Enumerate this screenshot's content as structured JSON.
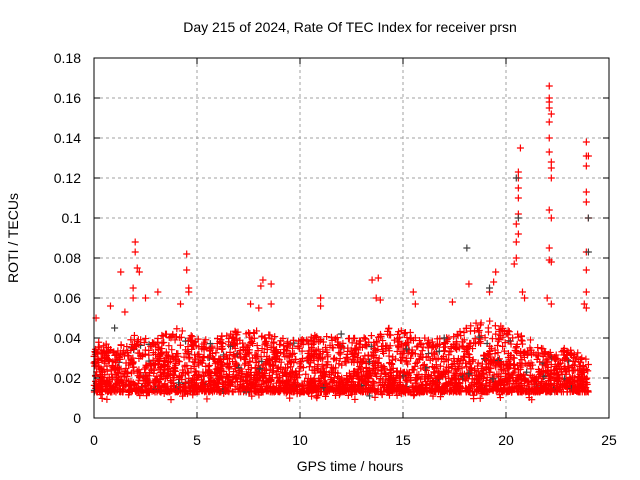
{
  "chart_data": {
    "type": "scatter",
    "title": "Day 215 of 2024, Rate Of TEC Index for receiver prsn",
    "xlabel": "GPS time / hours",
    "ylabel": "ROTI / TECUs",
    "xlim": [
      0,
      25
    ],
    "ylim": [
      0,
      0.18
    ],
    "xticks": [
      "0",
      "5",
      "10",
      "15",
      "20",
      "25"
    ],
    "xtick_values": [
      0,
      5,
      10,
      15,
      20,
      25
    ],
    "yticks": [
      "0",
      "0.02",
      "0.04",
      "0.06",
      "0.08",
      "0.1",
      "0.12",
      "0.14",
      "0.16",
      "0.18"
    ],
    "ytick_values": [
      0,
      0.02,
      0.04,
      0.06,
      0.08,
      0.1,
      0.12,
      0.14,
      0.16,
      0.18
    ],
    "grid": true,
    "marker": "plus",
    "colors": {
      "primary": "#ff0000",
      "secondary": "#404040",
      "grid": "#a0a0a0"
    },
    "dense_cloud": {
      "x_range": [
        0,
        24
      ],
      "y_floor": 0.007,
      "hourly_upper_envelope": [
        0.04,
        0.035,
        0.042,
        0.04,
        0.045,
        0.04,
        0.04,
        0.045,
        0.045,
        0.04,
        0.04,
        0.042,
        0.04,
        0.04,
        0.045,
        0.045,
        0.04,
        0.04,
        0.045,
        0.05,
        0.045,
        0.04,
        0.035,
        0.035,
        0.03
      ]
    },
    "series": [
      {
        "name": "red",
        "color": "#ff0000",
        "outliers": [
          [
            0.1,
            0.05
          ],
          [
            0.8,
            0.056
          ],
          [
            1.3,
            0.073
          ],
          [
            1.5,
            0.053
          ],
          [
            2.0,
            0.088
          ],
          [
            2.0,
            0.083
          ],
          [
            2.1,
            0.075
          ],
          [
            2.2,
            0.073
          ],
          [
            1.9,
            0.065
          ],
          [
            1.9,
            0.06
          ],
          [
            2.5,
            0.06
          ],
          [
            3.1,
            0.063
          ],
          [
            4.5,
            0.082
          ],
          [
            4.5,
            0.074
          ],
          [
            4.6,
            0.065
          ],
          [
            4.6,
            0.063
          ],
          [
            4.2,
            0.057
          ],
          [
            7.6,
            0.057
          ],
          [
            8.2,
            0.069
          ],
          [
            8.1,
            0.066
          ],
          [
            8.6,
            0.067
          ],
          [
            8.6,
            0.057
          ],
          [
            8.0,
            0.055
          ],
          [
            11.0,
            0.06
          ],
          [
            11.0,
            0.056
          ],
          [
            13.5,
            0.069
          ],
          [
            13.8,
            0.07
          ],
          [
            13.7,
            0.06
          ],
          [
            13.9,
            0.059
          ],
          [
            15.5,
            0.063
          ],
          [
            15.6,
            0.057
          ],
          [
            17.4,
            0.058
          ],
          [
            18.2,
            0.067
          ],
          [
            19.5,
            0.073
          ],
          [
            19.4,
            0.068
          ],
          [
            19.2,
            0.063
          ],
          [
            20.4,
            0.077
          ],
          [
            20.5,
            0.08
          ],
          [
            20.5,
            0.088
          ],
          [
            20.6,
            0.092
          ],
          [
            20.5,
            0.097
          ],
          [
            20.6,
            0.102
          ],
          [
            20.6,
            0.11
          ],
          [
            20.6,
            0.115
          ],
          [
            20.6,
            0.12
          ],
          [
            20.6,
            0.123
          ],
          [
            20.7,
            0.135
          ],
          [
            20.8,
            0.063
          ],
          [
            20.9,
            0.06
          ],
          [
            22.1,
            0.166
          ],
          [
            22.1,
            0.16
          ],
          [
            22.1,
            0.158
          ],
          [
            22.1,
            0.155
          ],
          [
            22.2,
            0.152
          ],
          [
            22.1,
            0.148
          ],
          [
            22.1,
            0.14
          ],
          [
            22.1,
            0.133
          ],
          [
            22.2,
            0.128
          ],
          [
            22.2,
            0.125
          ],
          [
            22.2,
            0.12
          ],
          [
            22.1,
            0.104
          ],
          [
            22.2,
            0.1
          ],
          [
            22.1,
            0.085
          ],
          [
            22.1,
            0.079
          ],
          [
            22.2,
            0.078
          ],
          [
            22.0,
            0.06
          ],
          [
            22.2,
            0.057
          ],
          [
            23.9,
            0.138
          ],
          [
            23.9,
            0.131
          ],
          [
            24.0,
            0.131
          ],
          [
            23.9,
            0.126
          ],
          [
            23.9,
            0.113
          ],
          [
            23.9,
            0.108
          ],
          [
            24.0,
            0.1
          ],
          [
            23.9,
            0.083
          ],
          [
            23.9,
            0.074
          ],
          [
            23.9,
            0.063
          ],
          [
            23.8,
            0.057
          ],
          [
            23.9,
            0.055
          ]
        ]
      },
      {
        "name": "black",
        "color": "#404040",
        "outliers": [
          [
            18.1,
            0.085
          ],
          [
            20.6,
            0.1
          ],
          [
            20.5,
            0.12
          ],
          [
            24.0,
            0.1
          ],
          [
            24.0,
            0.083
          ],
          [
            19.2,
            0.065
          ],
          [
            1.0,
            0.045
          ],
          [
            12.0,
            0.042
          ],
          [
            17.0,
            0.04
          ]
        ]
      }
    ]
  }
}
